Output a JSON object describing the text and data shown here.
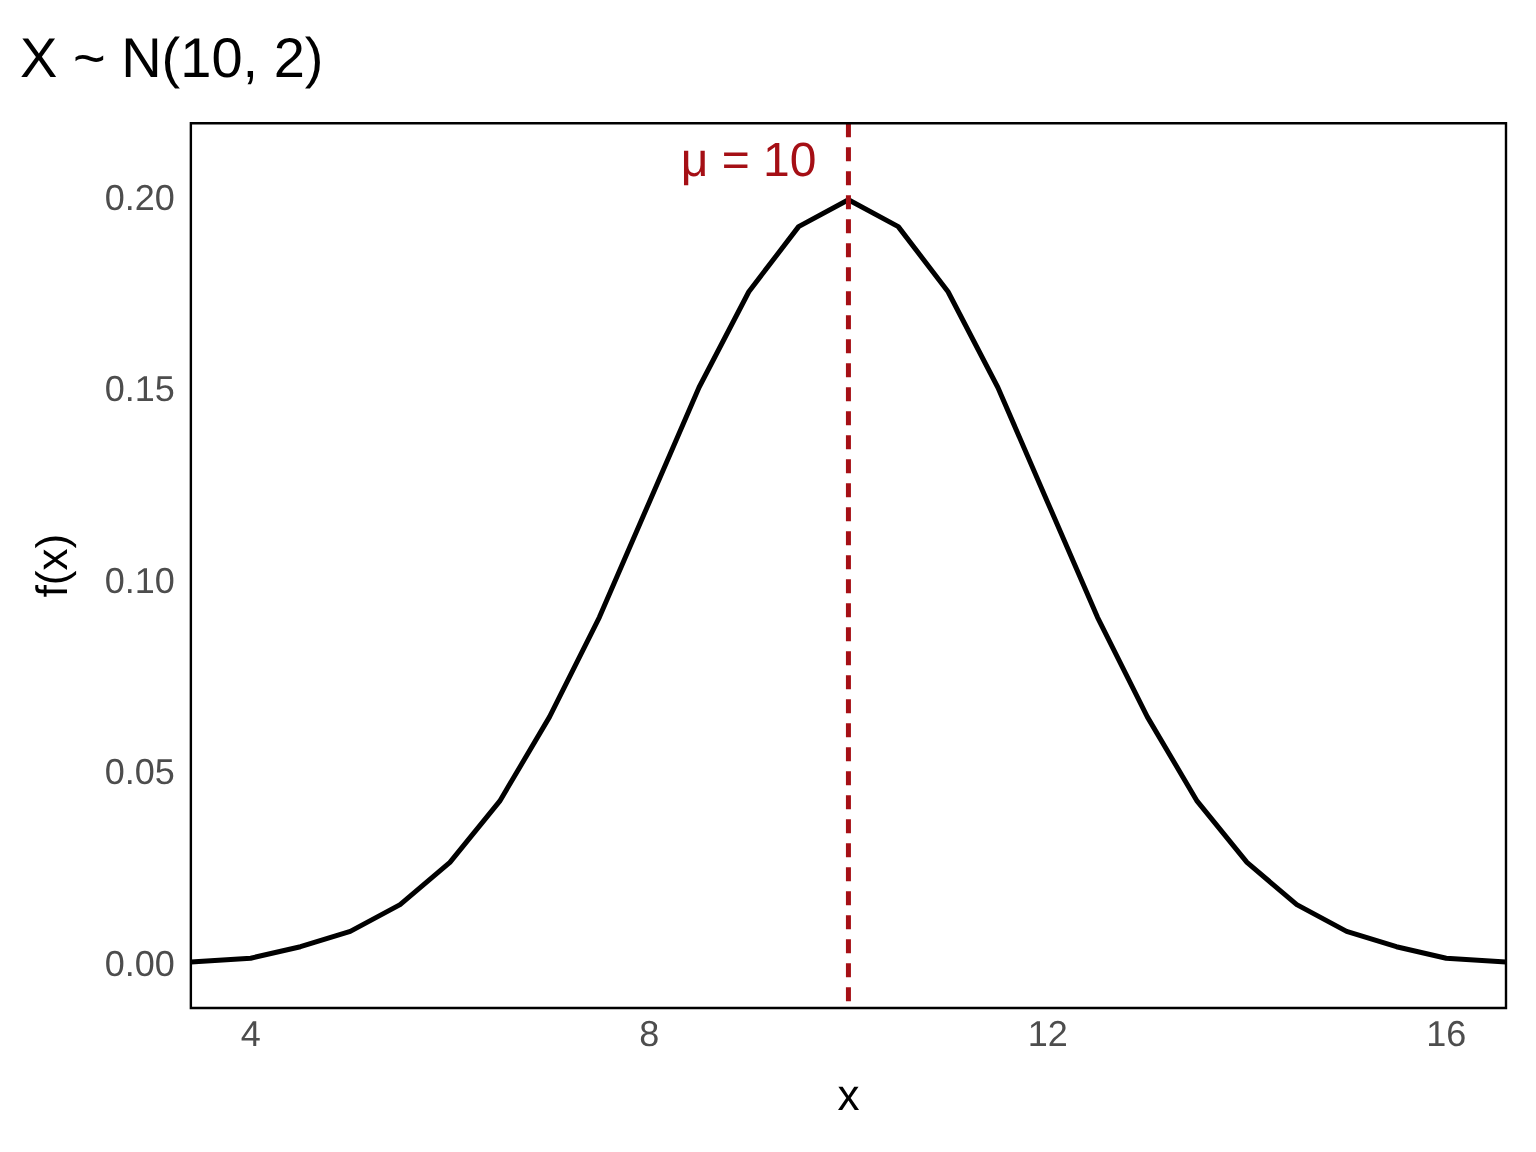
{
  "chart_data": {
    "type": "line",
    "title": "X ~ N(10, 2)",
    "xlabel": "x",
    "ylabel": "f(x)",
    "x": [
      3.4,
      4,
      4.5,
      5,
      5.5,
      6,
      6.5,
      7,
      7.5,
      8,
      8.5,
      9,
      9.5,
      10,
      10.5,
      11,
      11.5,
      12,
      12.5,
      13,
      13.5,
      14,
      14.5,
      15,
      15.5,
      16,
      16.6
    ],
    "series": [
      {
        "color": "#000000",
        "values": [
          0.001,
          0.002,
          0.005,
          0.009,
          0.016,
          0.027,
          0.043,
          0.065,
          0.091,
          0.121,
          0.151,
          0.176,
          0.193,
          0.2,
          0.193,
          0.176,
          0.151,
          0.121,
          0.091,
          0.065,
          0.043,
          0.027,
          0.016,
          0.009,
          0.005,
          0.002,
          0.001
        ]
      }
    ],
    "xlim": [
      3.4,
      16.6
    ],
    "ylim": [
      -0.011,
      0.22
    ],
    "xticks": [
      4,
      8,
      12,
      16
    ],
    "yticks": [
      {
        "value": 0,
        "label": "0.00"
      },
      {
        "value": 0.05,
        "label": "0.05"
      },
      {
        "value": 0.1,
        "label": "0.10"
      },
      {
        "value": 0.15,
        "label": "0.15"
      },
      {
        "value": 0.2,
        "label": "0.20"
      }
    ],
    "ref_lines": [
      {
        "axis": "x",
        "value": 10,
        "label": "μ = 10",
        "color": "#a50f15",
        "line_style": "dashed"
      }
    ],
    "grid": false,
    "legend": false,
    "marker": "none",
    "line_style": "solid"
  }
}
